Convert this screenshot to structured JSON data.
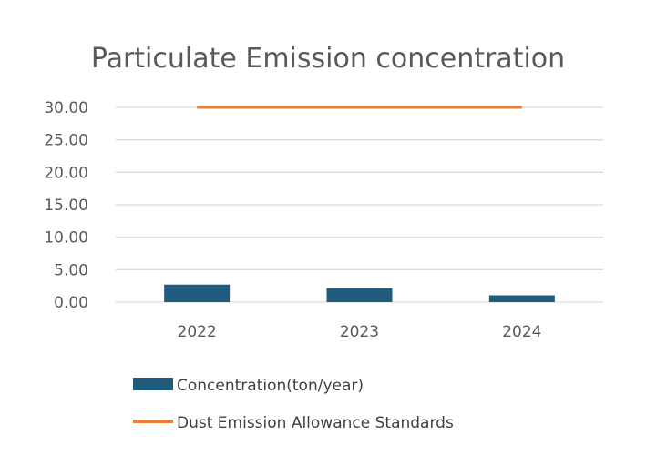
{
  "chart_data": {
    "type": "bar",
    "title": "Particulate Emission concentration",
    "categories": [
      "2022",
      "2023",
      "2024"
    ],
    "series": [
      {
        "name": "Concentration(ton/year)",
        "type": "bar",
        "values": [
          2.7,
          2.15,
          1.05
        ],
        "color": "#1f5c7d"
      },
      {
        "name": "Dust Emission Allowance Standards",
        "type": "line",
        "values": [
          30,
          30,
          30
        ],
        "color": "#ed7d31"
      }
    ],
    "y_ticks": [
      "0.00",
      "5.00",
      "10.00",
      "15.00",
      "20.00",
      "25.00",
      "30.00"
    ],
    "ylim": [
      0,
      30
    ],
    "grid": true,
    "gridline_color": "#d9d9d9",
    "legend_position": "bottom"
  }
}
